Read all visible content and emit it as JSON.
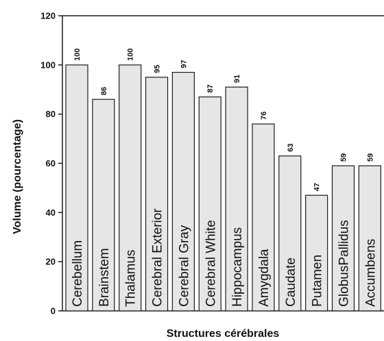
{
  "chart_data": {
    "type": "bar",
    "title": "",
    "xlabel": "Structures cérébrales",
    "ylabel": "Volume (pourcentage)",
    "ylim": [
      0,
      120
    ],
    "yticks": [
      "0",
      "20",
      "40",
      "60",
      "80",
      "100",
      "120"
    ],
    "grid": false,
    "categories": [
      "Cerebellum",
      "Brainstem",
      "Thalamus",
      "Cerebral Exterior",
      "Cerebral Gray",
      "Cerebral White",
      "Hippocampus",
      "Amygdala",
      "Caudate",
      "Putamen",
      "GlobusPallidus",
      "Accumbens"
    ],
    "values": [
      100,
      86,
      100,
      95,
      97,
      87,
      91,
      76,
      63,
      47,
      59,
      59
    ],
    "bar_color": "#e6e6e6",
    "edge_color": "#1a1a1a"
  }
}
